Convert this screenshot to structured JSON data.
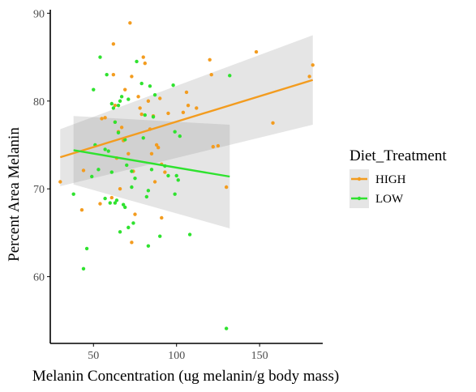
{
  "chart_data": {
    "type": "scatter",
    "xlabel": "Melanin Concentration (ug melanin/g body mass)",
    "ylabel": "Percent Area Melanin",
    "xlim": [
      24,
      188
    ],
    "ylim": [
      52.4,
      90.4
    ],
    "x_ticks": [
      50,
      100,
      150
    ],
    "y_ticks": [
      60,
      70,
      80,
      90
    ],
    "grid": false,
    "legend": {
      "title": "Diet_Treatment",
      "placement": "right",
      "entries": [
        "HIGH",
        "LOW"
      ]
    },
    "series": [
      {
        "name": "HIGH",
        "color": "#f39c1f",
        "points": [
          [
            30,
            70.8
          ],
          [
            43,
            67.6
          ],
          [
            44,
            72.1
          ],
          [
            54,
            68.3
          ],
          [
            55,
            78
          ],
          [
            57,
            78.1
          ],
          [
            61,
            69
          ],
          [
            62,
            86.5
          ],
          [
            62,
            83
          ],
          [
            63,
            79.5
          ],
          [
            63,
            77.6
          ],
          [
            64,
            73.5
          ],
          [
            65,
            76.5
          ],
          [
            66,
            70
          ],
          [
            67,
            77
          ],
          [
            68,
            75.5
          ],
          [
            69,
            81.3
          ],
          [
            71,
            74
          ],
          [
            72,
            88.9
          ],
          [
            73,
            82.8
          ],
          [
            73,
            63.9
          ],
          [
            74,
            72
          ],
          [
            75,
            67.1
          ],
          [
            77,
            80.5
          ],
          [
            78,
            79.2
          ],
          [
            79,
            78.5
          ],
          [
            80,
            85
          ],
          [
            81,
            84.3
          ],
          [
            83,
            80
          ],
          [
            84,
            76.8
          ],
          [
            85,
            74
          ],
          [
            86,
            78.3
          ],
          [
            87,
            70.8
          ],
          [
            88,
            75
          ],
          [
            89,
            74.7
          ],
          [
            90,
            80.3
          ],
          [
            91,
            72.8
          ],
          [
            91,
            66.7
          ],
          [
            93,
            71.9
          ],
          [
            95,
            78.6
          ],
          [
            104,
            78.7
          ],
          [
            106,
            81
          ],
          [
            107,
            79.5
          ],
          [
            112,
            79.2
          ],
          [
            120,
            84.7
          ],
          [
            121,
            83
          ],
          [
            122,
            74.8
          ],
          [
            125,
            74.9
          ],
          [
            130,
            70.2
          ],
          [
            148,
            85.6
          ],
          [
            158,
            77.5
          ],
          [
            180,
            82.8
          ],
          [
            182,
            84.1
          ]
        ],
        "trend": {
          "x": [
            30,
            182
          ],
          "y": [
            73.6,
            82.4
          ]
        },
        "band": {
          "x": [
            30,
            182
          ],
          "upper": [
            76.8,
            87.5
          ],
          "lower": [
            70.3,
            77.3
          ]
        }
      },
      {
        "name": "LOW",
        "color": "#2fe22f",
        "points": [
          [
            38,
            69.4
          ],
          [
            44,
            60.9
          ],
          [
            46,
            63.2
          ],
          [
            49,
            71.4
          ],
          [
            50,
            81.3
          ],
          [
            51,
            75
          ],
          [
            53,
            72.2
          ],
          [
            54,
            85
          ],
          [
            57,
            74.5
          ],
          [
            57,
            68.9
          ],
          [
            58,
            83
          ],
          [
            59,
            74.3
          ],
          [
            60,
            68.4
          ],
          [
            61,
            71.9
          ],
          [
            61,
            79.7
          ],
          [
            62,
            79.2
          ],
          [
            63,
            77.6
          ],
          [
            63,
            68.4
          ],
          [
            64,
            68.7
          ],
          [
            65,
            79.5
          ],
          [
            65,
            76.4
          ],
          [
            66,
            80
          ],
          [
            66,
            65.1
          ],
          [
            67,
            80.5
          ],
          [
            68,
            68.2
          ],
          [
            69,
            67.9
          ],
          [
            69,
            75.6
          ],
          [
            70,
            72.7
          ],
          [
            71,
            80.2
          ],
          [
            71,
            65.6
          ],
          [
            73,
            72
          ],
          [
            73,
            70.2
          ],
          [
            74,
            66.1
          ],
          [
            75,
            71.2
          ],
          [
            76,
            84.5
          ],
          [
            79,
            82
          ],
          [
            80,
            75.8
          ],
          [
            81,
            78.4
          ],
          [
            82,
            69.1
          ],
          [
            83,
            63.5
          ],
          [
            83,
            69.8
          ],
          [
            84,
            81.7
          ],
          [
            85,
            72.2
          ],
          [
            86,
            78.2
          ],
          [
            87,
            80.7
          ],
          [
            90,
            64.6
          ],
          [
            93,
            72.6
          ],
          [
            95,
            71.5
          ],
          [
            98,
            81.8
          ],
          [
            99,
            69.4
          ],
          [
            99,
            76.5
          ],
          [
            100,
            71.5
          ],
          [
            101,
            71
          ],
          [
            102,
            76
          ],
          [
            108,
            64.8
          ],
          [
            130,
            54.1
          ],
          [
            132,
            82.9
          ]
        ],
        "trend": {
          "x": [
            38,
            132
          ],
          "y": [
            74.4,
            71.4
          ]
        },
        "band": {
          "x": [
            38,
            132
          ],
          "upper": [
            78.3,
            77.3
          ],
          "lower": [
            70.5,
            65.5
          ]
        }
      }
    ]
  }
}
